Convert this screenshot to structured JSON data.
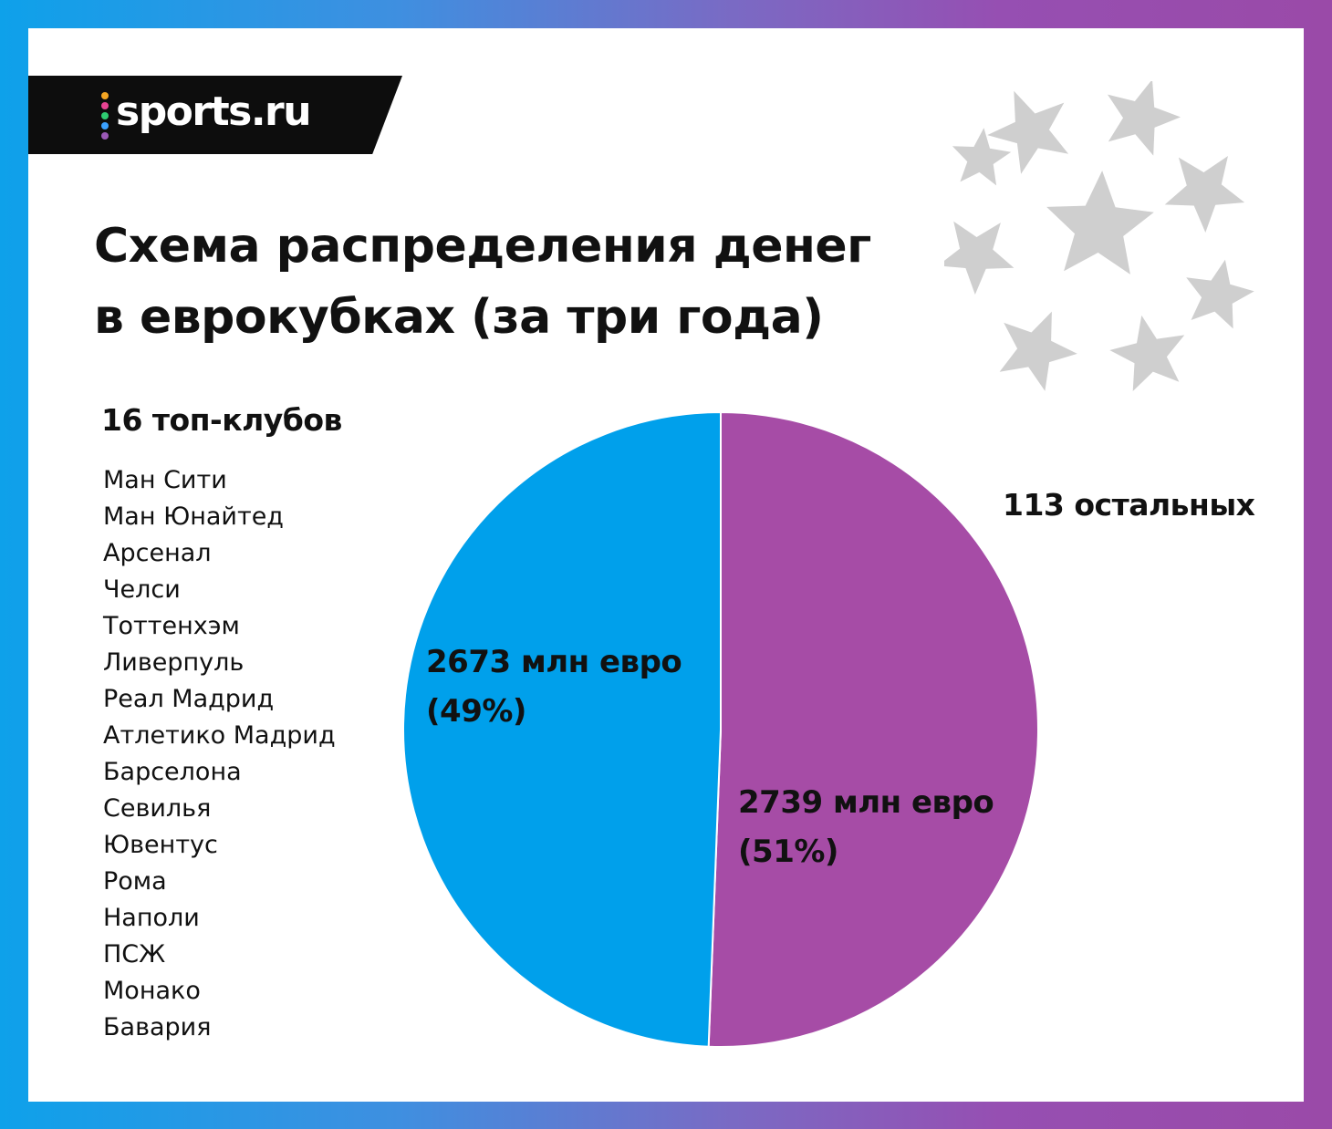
{
  "brand": {
    "name": "sports.ru",
    "dot_colors": [
      "#f5a623",
      "#e84393",
      "#2ecc71",
      "#3aa0ff",
      "#9b59b6"
    ]
  },
  "title_lines": [
    "Схема распределения денег",
    "в еврокубках (за три года)"
  ],
  "icons": {
    "decoration": "champions-league-starball-icon"
  },
  "colors": {
    "top_clubs": "#00a0eb",
    "others": "#a64ca6",
    "starball": "#cfcfcf"
  },
  "top_clubs": {
    "heading": "16 топ-клубов",
    "clubs": [
      "Ман Сити",
      "Ман Юнайтед",
      "Арсенал",
      "Челси",
      "Тоттенхэм",
      "Ливерпуль",
      "Реал Мадрид",
      "Атлетико Мадрид",
      "Барселона",
      "Севилья",
      "Ювентус",
      "Рома",
      "Наполи",
      "ПСЖ",
      "Монако",
      "Бавария"
    ]
  },
  "others": {
    "heading": "113 остальных"
  },
  "chart_data": {
    "type": "pie",
    "title": "Схема распределения денег в еврокубках (за три года)",
    "unit": "млн евро",
    "slices": [
      {
        "name": "113 остальных",
        "value": 2739,
        "percent": 51,
        "label_lines": [
          "2739 млн евро",
          "(51%)"
        ]
      },
      {
        "name": "16 топ-клубов",
        "value": 2673,
        "percent": 49,
        "label_lines": [
          "2673 млн евро",
          "(49%)"
        ]
      }
    ],
    "legend": false
  }
}
